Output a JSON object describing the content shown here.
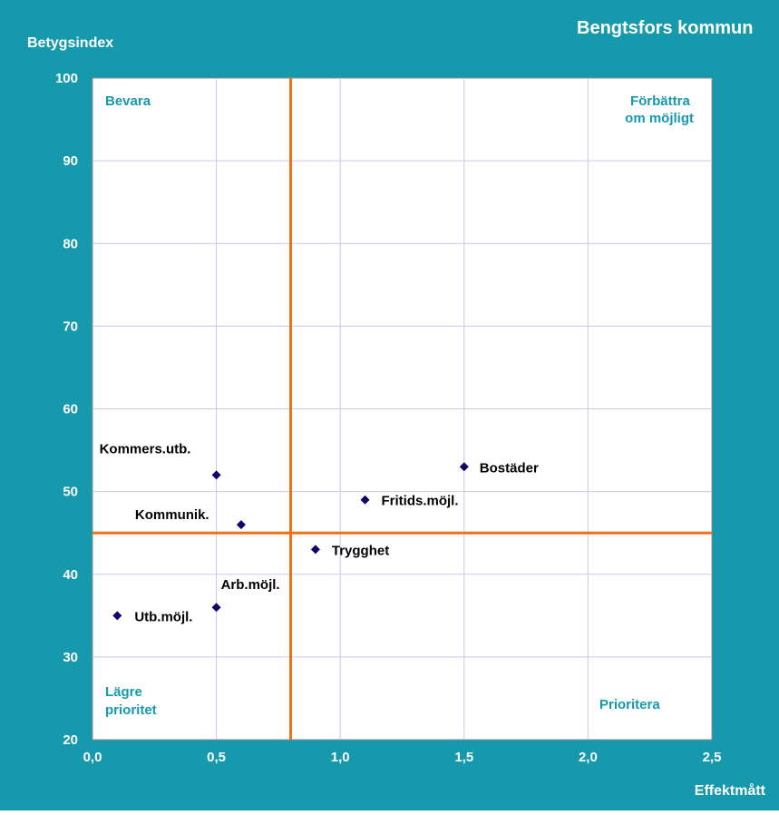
{
  "colors": {
    "background": "#1699ad",
    "plot_area": "#ffffff",
    "grid": "#c9c9e6",
    "quadrant_line": "#f26d17",
    "marker": "#12006b",
    "quadrant_label": "#1699ad",
    "axis_text": "#ffffff",
    "point_label": "#000000"
  },
  "chart_data": {
    "type": "scatter",
    "title": "Bengtsfors kommun",
    "xlabel": "Effektmått",
    "ylabel": "Betygsindex",
    "xlim": [
      0,
      2.5
    ],
    "ylim": [
      20,
      100
    ],
    "x_ticks": [
      {
        "value": 0,
        "label": "0,0"
      },
      {
        "value": 0.5,
        "label": "0,5"
      },
      {
        "value": 1.0,
        "label": "1,0"
      },
      {
        "value": 1.5,
        "label": "1,5"
      },
      {
        "value": 2.0,
        "label": "2,0"
      },
      {
        "value": 2.5,
        "label": "2,5"
      }
    ],
    "y_ticks": [
      {
        "value": 20,
        "label": "20"
      },
      {
        "value": 30,
        "label": "30"
      },
      {
        "value": 40,
        "label": "40"
      },
      {
        "value": 50,
        "label": "50"
      },
      {
        "value": 60,
        "label": "60"
      },
      {
        "value": 70,
        "label": "70"
      },
      {
        "value": 80,
        "label": "80"
      },
      {
        "value": 90,
        "label": "90"
      },
      {
        "value": 100,
        "label": "100"
      }
    ],
    "grid": true,
    "reference_lines": {
      "x": 0.8,
      "y": 45
    },
    "points": [
      {
        "label": "Kommers.utb.",
        "x": 0.5,
        "y": 52
      },
      {
        "label": "Kommunik.",
        "x": 0.6,
        "y": 46
      },
      {
        "label": "Arb.möjl.",
        "x": 0.5,
        "y": 36
      },
      {
        "label": "Utb.möjl.",
        "x": 0.1,
        "y": 35
      },
      {
        "label": "Trygghet",
        "x": 0.9,
        "y": 43
      },
      {
        "label": "Fritids.möjl.",
        "x": 1.1,
        "y": 49
      },
      {
        "label": "Bostäder",
        "x": 1.5,
        "y": 53
      }
    ],
    "quadrant_labels": {
      "top_left": "Bevara",
      "top_right": "Förbättra om möjligt",
      "bottom_left": "Lägre prioritet",
      "bottom_right": "Prioritera"
    }
  }
}
